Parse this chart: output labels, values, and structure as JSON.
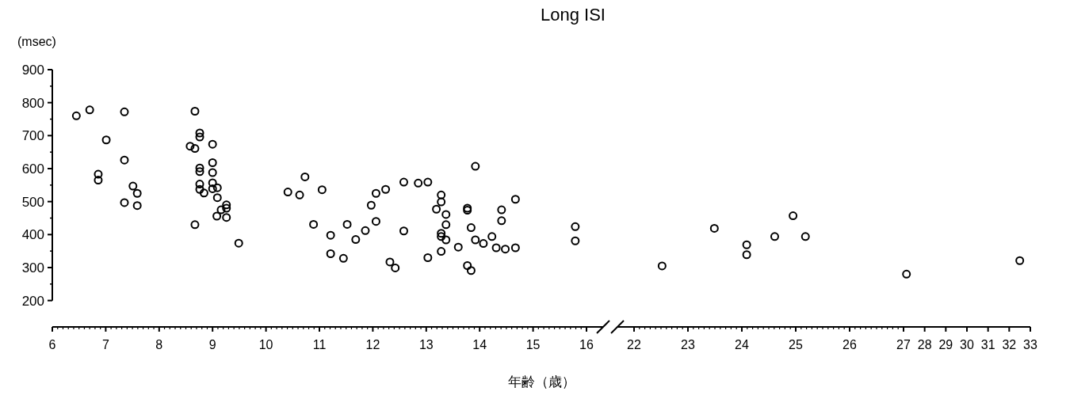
{
  "chart_data": [
    {
      "type": "scatter",
      "title": "Long ISI",
      "ylabel": "(msec)",
      "xlabel": "年齢（歳）",
      "marker": "circle",
      "grid": false,
      "xlim": [
        6,
        16
      ],
      "xticks": [
        6,
        7,
        8,
        9,
        10,
        11,
        12,
        13,
        14,
        15,
        16
      ],
      "ylim": [
        120,
        900
      ],
      "yticks": [
        200,
        300,
        400,
        500,
        600,
        700,
        800,
        900
      ],
      "series": [
        {
          "color": "#000000",
          "x": [
            6.45,
            6.7,
            7.01,
            6.86,
            6.86,
            7.35,
            7.35,
            7.35,
            7.51,
            7.59,
            7.59,
            8.67,
            8.76,
            8.76,
            8.58,
            8.67,
            9.0,
            9.0,
            8.76,
            8.76,
            9.0,
            8.76,
            9.0,
            8.76,
            9.0,
            9.09,
            8.84,
            9.09,
            9.26,
            9.26,
            9.16,
            9.08,
            9.26,
            8.67,
            9.49,
            10.41,
            10.63,
            10.73,
            11.05,
            10.89,
            11.21,
            11.21,
            11.45,
            11.52,
            11.68,
            11.86,
            11.97,
            12.06,
            12.06,
            12.24,
            12.32,
            12.42,
            12.58,
            12.58,
            12.85,
            13.03,
            13.03,
            13.28,
            13.28,
            13.19,
            13.37,
            13.37,
            13.28,
            13.28,
            13.37,
            13.28,
            13.6,
            13.92,
            13.77,
            13.77,
            13.84,
            13.92,
            14.07,
            14.23,
            14.31,
            14.48,
            14.67,
            14.41,
            14.41,
            14.67,
            13.77,
            13.84,
            15.79,
            15.79
          ],
          "values": [
            760,
            778,
            687,
            583,
            565,
            772,
            626,
            497,
            547,
            525,
            488,
            774,
            708,
            696,
            668,
            661,
            674,
            618,
            602,
            591,
            588,
            553,
            557,
            537,
            539,
            542,
            526,
            512,
            490,
            480,
            475,
            456,
            452,
            430,
            374,
            529,
            520,
            575,
            536,
            431,
            398,
            342,
            328,
            431,
            385,
            412,
            489,
            525,
            440,
            537,
            317,
            299,
            559,
            411,
            556,
            559,
            330,
            520,
            499,
            477,
            461,
            430,
            404,
            394,
            384,
            349,
            362,
            607,
            480,
            474,
            421,
            384,
            373,
            394,
            360,
            356,
            360,
            475,
            442,
            507,
            306,
            291,
            424,
            381
          ]
        }
      ]
    },
    {
      "type": "scatter",
      "marker": "circle",
      "grid": false,
      "tick_labels": "x",
      "xlim": [
        22,
        27
      ],
      "xticks": [
        22,
        23,
        24,
        25,
        26
      ],
      "ylim": [
        120,
        900
      ],
      "series": [
        {
          "color": "#000000",
          "x": [
            22.52,
            23.49,
            24.09,
            24.09,
            24.61,
            24.95,
            25.18
          ],
          "values": [
            305,
            419,
            369,
            339,
            394,
            457,
            394
          ]
        }
      ]
    },
    {
      "type": "scatter",
      "marker": "circle",
      "grid": false,
      "tick_labels": "x",
      "xlim": [
        27,
        33
      ],
      "xticks": [
        27,
        28,
        29,
        30,
        31,
        32,
        33
      ],
      "ylim": [
        120,
        900
      ],
      "series": [
        {
          "color": "#000000",
          "x": [
            27.14,
            32.5
          ],
          "values": [
            280,
            321
          ]
        }
      ]
    }
  ]
}
